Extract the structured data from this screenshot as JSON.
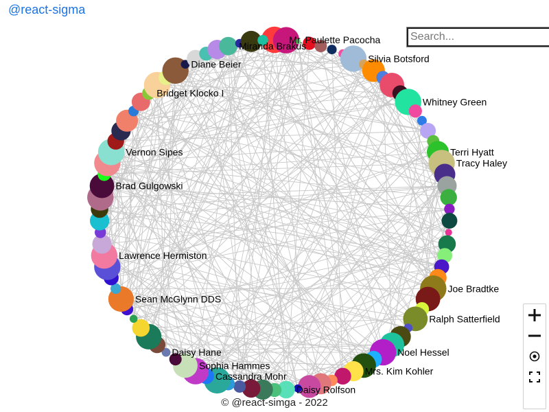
{
  "app": {
    "title": "@react-sigma"
  },
  "search": {
    "placeholder": "Search..."
  },
  "footer": {
    "credit": "© @react-simga - 2022"
  },
  "controls": [
    {
      "name": "zoom-in-button",
      "icon": "plus-icon"
    },
    {
      "name": "zoom-out-button",
      "icon": "minus-icon"
    },
    {
      "name": "reset-view-button",
      "icon": "target-icon"
    },
    {
      "name": "fullscreen-button",
      "icon": "fullscreen-icon"
    }
  ],
  "graph": {
    "edge_color": "#c8c8c8",
    "nodes": [
      {
        "c": "#ff3b3b",
        "s": 3.0
      },
      {
        "c": "#c8177a",
        "s": 3.0
      },
      {
        "c": "#55d96b",
        "s": 0.6
      },
      {
        "c": "#e60f1f",
        "s": 1.5
      },
      {
        "c": "#a35d5d",
        "s": 1.4
      },
      {
        "c": "#0e2c5f",
        "s": 1.1
      },
      {
        "c": "#f24fa1",
        "s": 1.0
      },
      {
        "c": "#9fbbd8",
        "s": 3.0
      },
      {
        "c": "#d6a35c",
        "s": 1.1
      },
      {
        "c": "#ff8c00",
        "s": 2.6
      },
      {
        "c": "#4b7fe0",
        "s": 1.5
      },
      {
        "c": "#e84c6a",
        "s": 2.8
      },
      {
        "c": "#3b1020",
        "s": 1.8
      },
      {
        "c": "#22e39f",
        "s": 3.0
      },
      {
        "c": "#f04aa0",
        "s": 1.5
      },
      {
        "c": "#2f7be8",
        "s": 1.1
      },
      {
        "c": "#b8a6f5",
        "s": 1.8
      },
      {
        "c": "#5abf3c",
        "s": 1.4
      },
      {
        "c": "#2bc22b",
        "s": 2.5
      },
      {
        "c": "#c8c07f",
        "s": 3.0
      },
      {
        "c": "#4a2f8a",
        "s": 2.4
      },
      {
        "c": "#9aa3a0",
        "s": 2.2
      },
      {
        "c": "#3bb040",
        "s": 1.9
      },
      {
        "c": "#8a1bc2",
        "s": 1.2
      },
      {
        "c": "#0f4a42",
        "s": 1.8
      },
      {
        "c": "#e8329a",
        "s": 0.8
      },
      {
        "c": "#18794a",
        "s": 2.0
      },
      {
        "c": "#86ef7a",
        "s": 1.7
      },
      {
        "c": "#4a18c8",
        "s": 1.7
      },
      {
        "c": "#ff8a1a",
        "s": 2.0
      },
      {
        "c": "#8e7a1a",
        "s": 3.0
      },
      {
        "c": "#7a1a18",
        "s": 2.8
      },
      {
        "c": "#d8f53c",
        "s": 1.6
      },
      {
        "c": "#7a8c2a",
        "s": 2.8
      },
      {
        "c": "#4f4fc8",
        "s": 1.0
      },
      {
        "c": "#4a4a12",
        "s": 2.4
      },
      {
        "c": "#1ec29c",
        "s": 2.8
      },
      {
        "c": "#b21ec8",
        "s": 3.0
      },
      {
        "c": "#1eb0ff",
        "s": 1.9
      },
      {
        "c": "#24500f",
        "s": 2.8
      },
      {
        "c": "#ffe14a",
        "s": 2.3
      },
      {
        "c": "#c2186b",
        "s": 1.9
      },
      {
        "c": "#ff8a5a",
        "s": 1.3
      },
      {
        "c": "#e0777a",
        "s": 2.4
      },
      {
        "c": "#c84aa0",
        "s": 2.6
      },
      {
        "c": "#1010b0",
        "s": 0.9
      },
      {
        "c": "#5ae0b8",
        "s": 2.0
      },
      {
        "c": "#4ac07a",
        "s": 1.6
      },
      {
        "c": "#3a7a5a",
        "s": 2.3
      },
      {
        "c": "#7a1a3a",
        "s": 2.1
      },
      {
        "c": "#4a5aa0",
        "s": 1.4
      },
      {
        "c": "#2a9ad8",
        "s": 1.5
      },
      {
        "c": "#2aa89a",
        "s": 3.0
      },
      {
        "c": "#1e78f5",
        "s": 1.8
      },
      {
        "c": "#c03ac8",
        "s": 3.0
      },
      {
        "c": "#c8e0b8",
        "s": 2.8
      },
      {
        "c": "#4a0a3a",
        "s": 1.4
      },
      {
        "c": "#6a7ab0",
        "s": 1.0
      },
      {
        "c": "#7a4a3a",
        "s": 1.9
      },
      {
        "c": "#1a7a5a",
        "s": 2.9
      },
      {
        "c": "#f5d530",
        "s": 2.0
      },
      {
        "c": "#2aa050",
        "s": 0.9
      },
      {
        "c": "#4010d0",
        "s": 1.4
      },
      {
        "c": "#ea7a2a",
        "s": 2.9
      },
      {
        "c": "#3aa8d0",
        "s": 1.2
      },
      {
        "c": "#3010d0",
        "s": 1.7
      },
      {
        "c": "#5a50d8",
        "s": 3.0
      },
      {
        "c": "#f27aa0",
        "s": 3.0
      },
      {
        "c": "#c8a8d8",
        "s": 2.2
      },
      {
        "c": "#7a3ad8",
        "s": 1.3
      },
      {
        "c": "#1ac0d0",
        "s": 2.2
      },
      {
        "c": "#3a3a0a",
        "s": 2.0
      },
      {
        "c": "#b06a8a",
        "s": 3.0
      },
      {
        "c": "#4a0a3a",
        "s": 2.8
      },
      {
        "c": "#1aff1a",
        "s": 1.5
      },
      {
        "c": "#f08a8f",
        "s": 3.0
      },
      {
        "c": "#8ae0d0",
        "s": 3.0
      },
      {
        "c": "#a01a1a",
        "s": 1.9
      },
      {
        "c": "#2a2a50",
        "s": 2.2
      },
      {
        "c": "#f0806a",
        "s": 2.5
      },
      {
        "c": "#2a7ad8",
        "s": 1.2
      },
      {
        "c": "#e86a6a",
        "s": 2.1
      },
      {
        "c": "#8ac83a",
        "s": 1.5
      },
      {
        "c": "#f8d29a",
        "s": 3.0
      },
      {
        "c": "#e8f08a",
        "s": 1.7
      },
      {
        "c": "#8a5a3a",
        "s": 3.0
      },
      {
        "c": "#1a1a4a",
        "s": 1.0
      },
      {
        "c": "#d8d8d8",
        "s": 2.0
      },
      {
        "c": "#4ac0b0",
        "s": 1.6
      },
      {
        "c": "#b88ae8",
        "s": 2.2
      },
      {
        "c": "#4ab89a",
        "s": 2.1
      },
      {
        "c": "#2a2aa0",
        "s": 1.0
      },
      {
        "c": "#3a3a10",
        "s": 2.4
      },
      {
        "c": "#1ac0a0",
        "s": 1.2
      }
    ],
    "labels": [
      {
        "text": "Mr. Paulette Pacocha",
        "node": 0
      },
      {
        "text": "Miranda Brakus",
        "node": 90
      },
      {
        "text": "Diane Beier",
        "node": 86
      },
      {
        "text": "Bridget Klocko I",
        "node": 82
      },
      {
        "text": "Vernon Sipes",
        "node": 76
      },
      {
        "text": "Brad Gulgowski",
        "node": 73
      },
      {
        "text": "Lawrence Hermiston",
        "node": 67
      },
      {
        "text": "Sean McGlynn DDS",
        "node": 63
      },
      {
        "text": "Daisy Hane",
        "node": 57
      },
      {
        "text": "Sophia Hammes",
        "node": 55
      },
      {
        "text": "Cassandra Mohr",
        "node": 53
      },
      {
        "text": "Daisy Rolfson",
        "node": 46
      },
      {
        "text": "Mrs. Kim Kohler",
        "node": 40
      },
      {
        "text": "Noel Hessel",
        "node": 37
      },
      {
        "text": "Ralph Satterfield",
        "node": 33
      },
      {
        "text": "Joe Bradtke",
        "node": 30
      },
      {
        "text": "Tracy Haley",
        "node": 19
      },
      {
        "text": "Terri Hyatt",
        "node": 18
      },
      {
        "text": "Whitney Green",
        "node": 13
      },
      {
        "text": "Silvia Botsford",
        "node": 7
      }
    ]
  }
}
